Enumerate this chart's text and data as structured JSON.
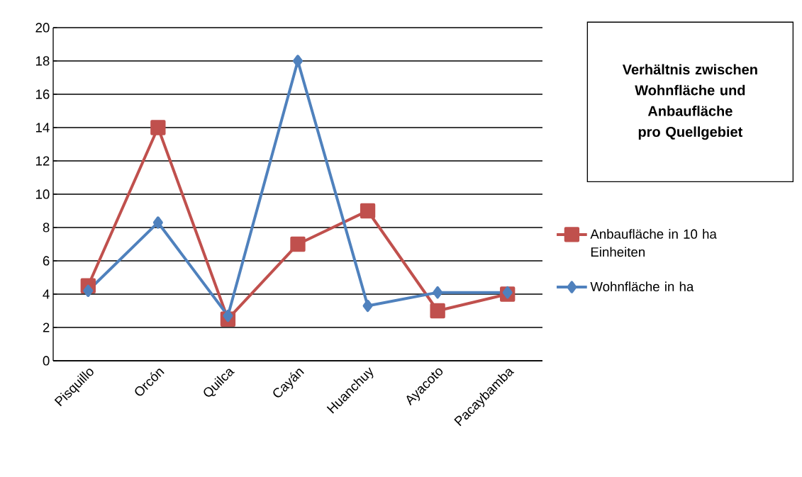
{
  "chart_data": {
    "type": "line",
    "title": "Verhältnis zwischen Wohnfläche und Anbaufläche pro Quellgebiet",
    "categories": [
      "Pisquillo",
      "Orcón",
      "Quilca",
      "Cayán",
      "Huanchuy",
      "Ayacoto",
      "Pacaybamba"
    ],
    "series": [
      {
        "name": "Anbaufläche in 10 ha Einheiten",
        "color": "#c0504d",
        "marker": "square",
        "values": [
          4.5,
          14,
          2.5,
          7,
          9,
          3,
          4
        ]
      },
      {
        "name": "Wohnfläche in ha",
        "color": "#4f81bd",
        "marker": "diamond",
        "values": [
          4.2,
          8.3,
          2.7,
          18,
          3.3,
          4.1,
          4.1
        ]
      }
    ],
    "ylim": [
      0,
      20
    ],
    "yticks": [
      0,
      2,
      4,
      6,
      8,
      10,
      12,
      14,
      16,
      18,
      20
    ],
    "grid": "y",
    "legend": "right"
  }
}
